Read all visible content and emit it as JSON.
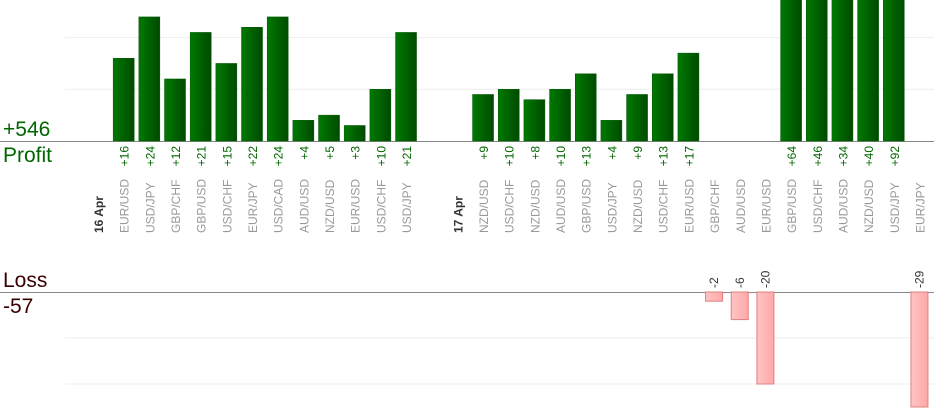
{
  "summary": {
    "profit_total": "+546",
    "profit_label": "Profit",
    "loss_label": "Loss",
    "loss_total": "-57"
  },
  "colors": {
    "profit": "#006600",
    "loss_fill": "#ffb8b8",
    "loss_border": "#e08080",
    "pair_label": "#999999"
  },
  "chart_data": {
    "type": "bar",
    "grid": true,
    "profit_gridline_step": 10,
    "loss_gridline_step": 10,
    "groups": [
      {
        "date": "16 Apr",
        "trades": [
          {
            "pair": "EUR/USD",
            "value": 16
          },
          {
            "pair": "USD/JPY",
            "value": 24
          },
          {
            "pair": "GBP/CHF",
            "value": 12
          },
          {
            "pair": "GBP/USD",
            "value": 21
          },
          {
            "pair": "USD/CHF",
            "value": 15
          },
          {
            "pair": "EUR/JPY",
            "value": 22
          },
          {
            "pair": "USD/CAD",
            "value": 24
          },
          {
            "pair": "AUD/USD",
            "value": 4
          },
          {
            "pair": "NZD/USD",
            "value": 5
          },
          {
            "pair": "EUR/USD",
            "value": 3
          },
          {
            "pair": "USD/CHF",
            "value": 10
          },
          {
            "pair": "USD/JPY",
            "value": 21
          }
        ]
      },
      {
        "date": "17 Apr",
        "trades": [
          {
            "pair": "NZD/USD",
            "value": 9
          },
          {
            "pair": "USD/CHF",
            "value": 10
          },
          {
            "pair": "NZD/USD",
            "value": 8
          },
          {
            "pair": "AUD/USD",
            "value": 10
          },
          {
            "pair": "GBP/USD",
            "value": 13
          },
          {
            "pair": "USD/JPY",
            "value": 4
          },
          {
            "pair": "NZD/USD",
            "value": 9
          },
          {
            "pair": "USD/CHF",
            "value": 13
          },
          {
            "pair": "EUR/USD",
            "value": 17
          },
          {
            "pair": "GBP/CHF",
            "value": -2
          },
          {
            "pair": "AUD/USD",
            "value": -6
          },
          {
            "pair": "EUR/USD",
            "value": -20
          },
          {
            "pair": "GBP/USD",
            "value": 64
          },
          {
            "pair": "USD/CHF",
            "value": 46
          },
          {
            "pair": "AUD/USD",
            "value": 34
          },
          {
            "pair": "NZD/USD",
            "value": 40
          },
          {
            "pair": "USD/JPY",
            "value": 92
          },
          {
            "pair": "EUR/JPY",
            "value": -29
          }
        ]
      }
    ]
  }
}
